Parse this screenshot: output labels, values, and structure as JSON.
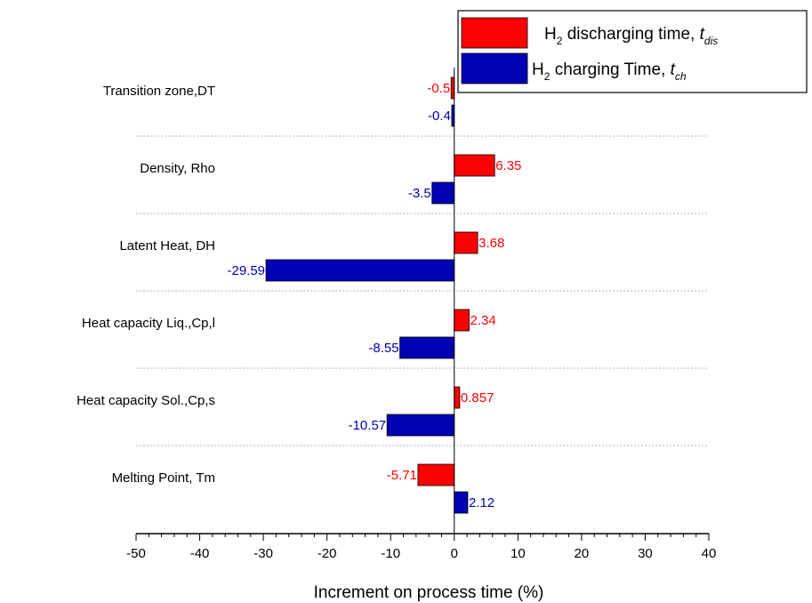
{
  "colors": {
    "discharging": "#ff0000",
    "charging": "#0000b4",
    "axis": "#000000",
    "grid": "#b0b0b0"
  },
  "chart_data": {
    "type": "bar",
    "orientation": "horizontal",
    "categories": [
      "Transition zone,DT",
      "Density, Rho",
      "Latent Heat, DH",
      "Heat capacity Liq.,Cp,l",
      "Heat capacity Sol.,Cp,s",
      "Melting Point, Tm"
    ],
    "series": [
      {
        "name": "H2 discharging time, tdis",
        "values": [
          -0.5,
          6.35,
          3.68,
          2.34,
          0.857,
          -5.71
        ]
      },
      {
        "name": "H2 charging Time, tch",
        "values": [
          -0.4,
          -3.5,
          -29.59,
          -8.55,
          -10.57,
          2.12
        ]
      }
    ],
    "value_labels": {
      "discharging": [
        "-0.5",
        "6.35",
        "3.68",
        "2.34",
        "0.857",
        "-5.71"
      ],
      "charging": [
        "-0.4",
        "-3.5",
        "-29.59",
        "-8.55",
        "-10.57",
        "2.12"
      ]
    },
    "xlabel": "Increment on process time (%)",
    "xlim": [
      -50,
      40
    ],
    "xticks": [
      -50,
      -40,
      -30,
      -20,
      -10,
      0,
      10,
      20,
      30,
      40
    ],
    "grid": "horizontal dotted separators between categories",
    "legend": {
      "placement": "top-right",
      "entries": [
        {
          "main": "H",
          "sub": "2",
          "text": " discharging time, ",
          "var": "t",
          "var_sub": "dis"
        },
        {
          "main": "H",
          "sub": "2",
          "text": " charging Time, ",
          "var": "t",
          "var_sub": "ch"
        }
      ]
    }
  }
}
